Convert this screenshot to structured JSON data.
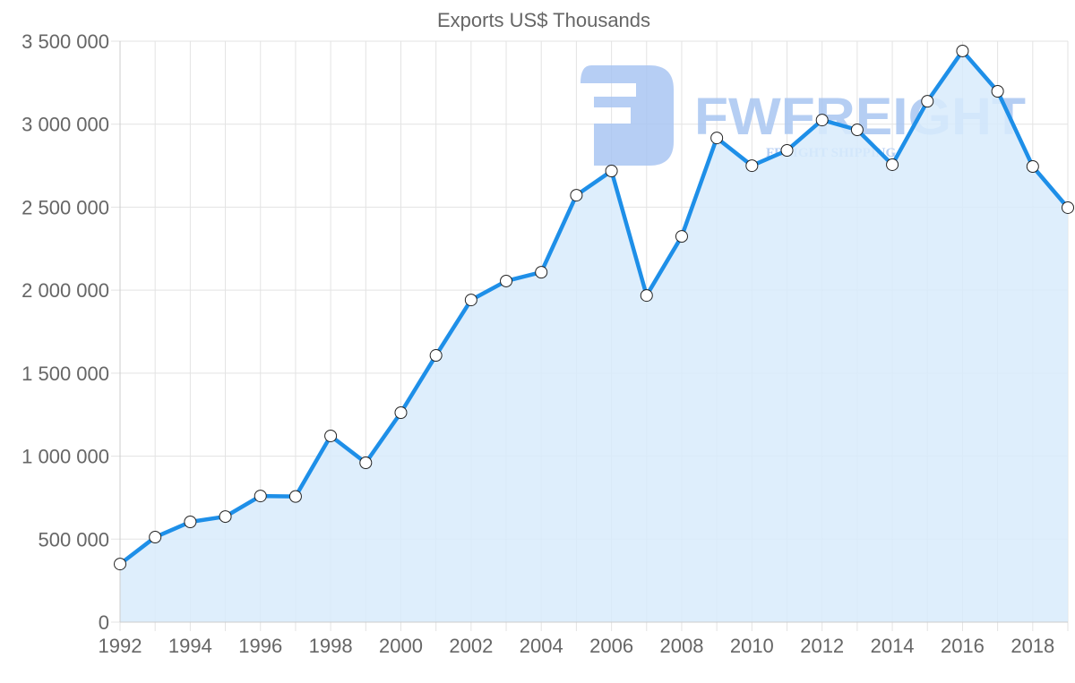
{
  "chart_data": {
    "type": "area",
    "title": "Exports US$ Thousands",
    "xlabel": "",
    "ylabel": "",
    "x": [
      1992,
      1993,
      1994,
      1995,
      1996,
      1997,
      1998,
      1999,
      2000,
      2001,
      2002,
      2003,
      2004,
      2005,
      2006,
      2007,
      2008,
      2009,
      2010,
      2011,
      2012,
      2013,
      2014,
      2015,
      2016,
      2017,
      2018,
      2019
    ],
    "series": [
      {
        "name": "Exports US$ Thousands",
        "values": [
          350000,
          512000,
          604000,
          636000,
          760000,
          757000,
          1122000,
          960000,
          1262000,
          1607000,
          1941000,
          2055000,
          2108000,
          2572000,
          2718000,
          1968000,
          2324000,
          2917000,
          2750000,
          2842000,
          3025000,
          2966000,
          2756000,
          3138000,
          3441000,
          3198000,
          2745000,
          2497000
        ]
      }
    ],
    "ylim": [
      0,
      3500000
    ],
    "xlim": [
      1992,
      2019
    ],
    "y_ticks": [
      0,
      500000,
      1000000,
      1500000,
      2000000,
      2500000,
      3000000,
      3500000
    ],
    "y_tick_labels": [
      "0",
      "500 000",
      "1 000 000",
      "1 500 000",
      "2 000 000",
      "2 500 000",
      "3 000 000",
      "3 500 000"
    ],
    "x_ticks": [
      1992,
      1994,
      1996,
      1998,
      2000,
      2002,
      2004,
      2006,
      2008,
      2010,
      2012,
      2014,
      2016,
      2018
    ],
    "x_tick_labels": [
      "1992",
      "1994",
      "1996",
      "1998",
      "2000",
      "2002",
      "2004",
      "2006",
      "2008",
      "2010",
      "2012",
      "2014",
      "2016",
      "2018"
    ],
    "grid": true,
    "legend": "none",
    "colors": {
      "line": "#1e8fe8",
      "fill": "#d8ebfc",
      "point_fill": "#ffffff",
      "point_stroke": "#222222",
      "grid": "#e3e3e3",
      "text": "#666666"
    }
  },
  "watermark": {
    "brand": "FWFREIGHT",
    "tagline": "FREIGHT SHIPPING",
    "color": "#a9c6f2"
  }
}
